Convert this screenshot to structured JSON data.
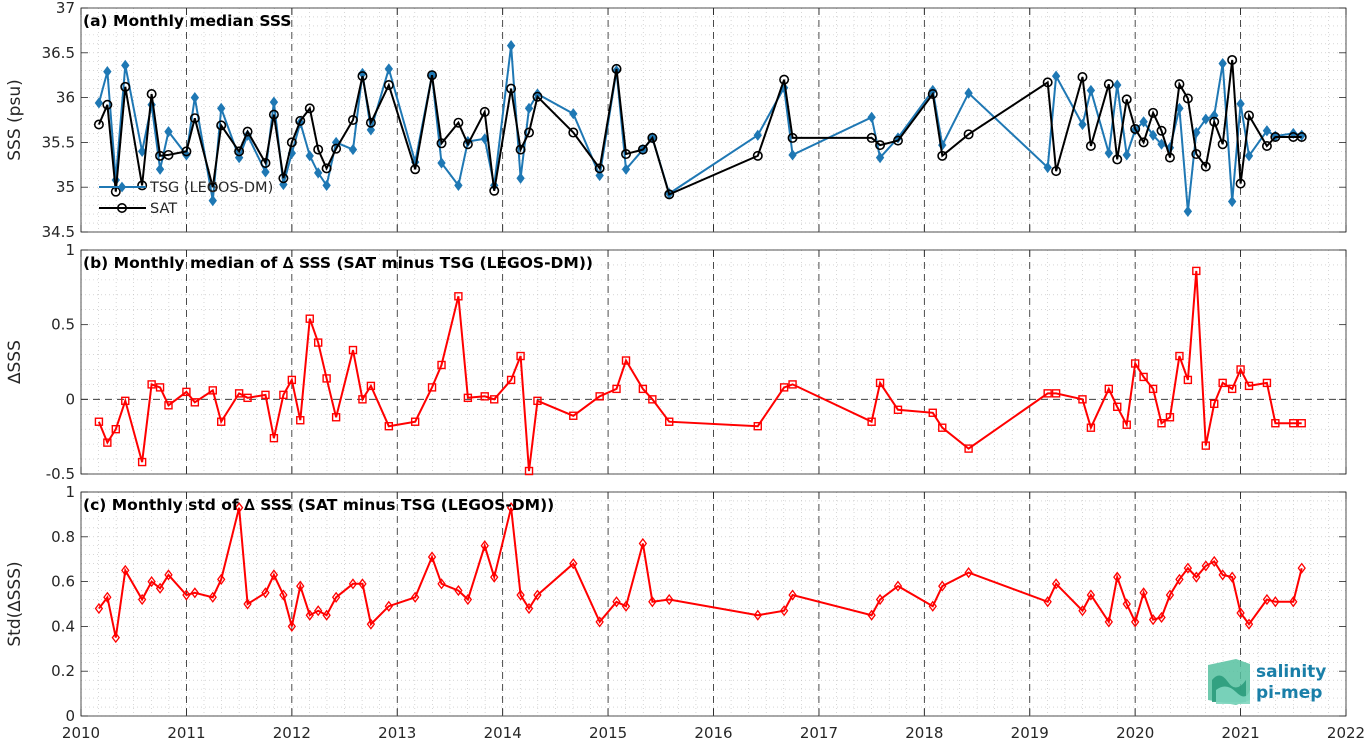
{
  "chart_data": [
    {
      "type": "line",
      "title": "(a) Monthly median SSS",
      "ylabel": "SSS (psu)",
      "xlim": [
        2010,
        2022
      ],
      "ylim": [
        34.5,
        37
      ],
      "yticks": [
        "34.5",
        "35",
        "35.5",
        "36",
        "36.5",
        "37"
      ],
      "grid": "on",
      "legend_location": "lower-left",
      "series": [
        {
          "name": "TSG (LEGOS-DM)",
          "color": "#1f78b4",
          "marker": "diamond",
          "x": [
            2010.17,
            2010.25,
            2010.33,
            2010.42,
            2010.58,
            2010.67,
            2010.75,
            2010.83,
            2011.0,
            2011.08,
            2011.25,
            2011.33,
            2011.5,
            2011.58,
            2011.75,
            2011.83,
            2011.92,
            2012.0,
            2012.08,
            2012.17,
            2012.25,
            2012.33,
            2012.42,
            2012.58,
            2012.67,
            2012.75,
            2012.92,
            2013.17,
            2013.33,
            2013.42,
            2013.58,
            2013.67,
            2013.83,
            2013.92,
            2014.08,
            2014.17,
            2014.25,
            2014.33,
            2014.67,
            2014.92,
            2015.08,
            2015.17,
            2015.33,
            2015.42,
            2015.58,
            2016.42,
            2016.67,
            2016.75,
            2017.5,
            2017.58,
            2017.75,
            2018.08,
            2018.17,
            2018.42,
            2019.17,
            2019.25,
            2019.5,
            2019.58,
            2019.75,
            2019.83,
            2019.92,
            2020.0,
            2020.08,
            2020.17,
            2020.25,
            2020.33,
            2020.42,
            2020.5,
            2020.58,
            2020.67,
            2020.75,
            2020.83,
            2020.92,
            2021.0,
            2021.08,
            2021.25,
            2021.33,
            2021.5,
            2021.58
          ],
          "y": [
            35.94,
            36.29,
            35.08,
            36.36,
            35.4,
            35.92,
            35.2,
            35.62,
            35.36,
            36.0,
            34.85,
            35.88,
            35.33,
            35.58,
            35.17,
            35.95,
            35.03,
            35.38,
            35.72,
            35.35,
            35.16,
            35.02,
            35.5,
            35.42,
            36.27,
            35.64,
            36.32,
            35.28,
            36.25,
            35.27,
            35.02,
            35.51,
            35.54,
            35.02,
            36.58,
            35.1,
            35.88,
            36.04,
            35.82,
            35.13,
            36.3,
            35.2,
            35.42,
            35.55,
            34.93,
            35.58,
            36.11,
            35.36,
            35.78,
            35.33,
            35.55,
            36.08,
            35.47,
            36.05,
            35.22,
            36.24,
            35.7,
            36.08,
            35.38,
            36.14,
            35.36,
            35.64,
            35.73,
            35.58,
            35.48,
            35.44,
            35.88,
            34.73,
            35.61,
            35.76,
            35.8,
            36.38,
            34.84,
            35.93,
            35.35,
            35.63,
            35.57,
            35.6,
            35.58
          ]
        },
        {
          "name": "SAT",
          "color": "#000000",
          "marker": "circle",
          "x": [
            2010.17,
            2010.25,
            2010.33,
            2010.42,
            2010.58,
            2010.67,
            2010.75,
            2010.83,
            2011.0,
            2011.08,
            2011.25,
            2011.33,
            2011.5,
            2011.58,
            2011.75,
            2011.83,
            2011.92,
            2012.0,
            2012.08,
            2012.17,
            2012.25,
            2012.33,
            2012.42,
            2012.58,
            2012.67,
            2012.75,
            2012.92,
            2013.17,
            2013.33,
            2013.42,
            2013.58,
            2013.67,
            2013.83,
            2013.92,
            2014.08,
            2014.17,
            2014.25,
            2014.33,
            2014.67,
            2014.92,
            2015.08,
            2015.17,
            2015.33,
            2015.42,
            2015.58,
            2016.42,
            2016.67,
            2016.75,
            2017.5,
            2017.58,
            2017.75,
            2018.08,
            2018.17,
            2018.42,
            2019.17,
            2019.25,
            2019.5,
            2019.58,
            2019.75,
            2019.83,
            2019.92,
            2020.0,
            2020.08,
            2020.17,
            2020.25,
            2020.33,
            2020.42,
            2020.5,
            2020.58,
            2020.67,
            2020.75,
            2020.83,
            2020.92,
            2021.0,
            2021.08,
            2021.25,
            2021.33,
            2021.5,
            2021.58
          ],
          "y": [
            35.7,
            35.92,
            34.95,
            36.12,
            35.02,
            36.04,
            35.35,
            35.36,
            35.4,
            35.77,
            35.0,
            35.69,
            35.4,
            35.62,
            35.27,
            35.81,
            35.1,
            35.5,
            35.74,
            35.88,
            35.42,
            35.21,
            35.43,
            35.75,
            36.24,
            35.72,
            36.14,
            35.2,
            36.25,
            35.49,
            35.72,
            35.48,
            35.84,
            34.96,
            36.1,
            35.42,
            35.61,
            36.01,
            35.61,
            35.21,
            36.32,
            35.37,
            35.42,
            35.55,
            34.92,
            35.35,
            36.2,
            35.55,
            35.55,
            35.47,
            35.52,
            36.04,
            35.35,
            35.59,
            36.17,
            35.18,
            36.23,
            35.46,
            36.15,
            35.31,
            35.98,
            35.65,
            35.5,
            35.83,
            35.63,
            35.33,
            36.15,
            35.99,
            35.37,
            35.23,
            35.73,
            35.48,
            36.42,
            35.04,
            35.8,
            35.46,
            35.56,
            35.56,
            35.56
          ]
        }
      ],
      "legend": [
        "TSG (LEGOS-DM)",
        "SAT"
      ]
    },
    {
      "type": "line",
      "title": "(b) Monthly median of ∆ SSS (SAT minus TSG (LEGOS-DM))",
      "ylabel": "∆SSS",
      "xlim": [
        2010,
        2022
      ],
      "ylim": [
        -0.5,
        1
      ],
      "yticks": [
        "-0.5",
        "0",
        "0.5",
        "1"
      ],
      "zero_line": true,
      "grid": "on",
      "series": [
        {
          "name": "",
          "color": "#ff0000",
          "marker": "square",
          "x": [
            2010.17,
            2010.25,
            2010.33,
            2010.42,
            2010.58,
            2010.67,
            2010.75,
            2010.83,
            2011.0,
            2011.08,
            2011.25,
            2011.33,
            2011.5,
            2011.58,
            2011.75,
            2011.83,
            2011.92,
            2012.0,
            2012.08,
            2012.17,
            2012.25,
            2012.33,
            2012.42,
            2012.58,
            2012.67,
            2012.75,
            2012.92,
            2013.17,
            2013.33,
            2013.42,
            2013.58,
            2013.67,
            2013.83,
            2013.92,
            2014.08,
            2014.17,
            2014.25,
            2014.33,
            2014.67,
            2014.92,
            2015.08,
            2015.17,
            2015.33,
            2015.42,
            2015.58,
            2016.42,
            2016.67,
            2016.75,
            2017.5,
            2017.58,
            2017.75,
            2018.08,
            2018.17,
            2018.42,
            2019.17,
            2019.25,
            2019.5,
            2019.58,
            2019.75,
            2019.83,
            2019.92,
            2020.0,
            2020.08,
            2020.17,
            2020.25,
            2020.33,
            2020.42,
            2020.5,
            2020.58,
            2020.67,
            2020.75,
            2020.83,
            2020.92,
            2021.0,
            2021.08,
            2021.25,
            2021.33,
            2021.5,
            2021.58
          ],
          "y": [
            -0.15,
            -0.29,
            -0.2,
            -0.01,
            -0.42,
            0.1,
            0.08,
            -0.04,
            0.05,
            -0.02,
            0.06,
            -0.15,
            0.04,
            0.01,
            0.03,
            -0.26,
            0.03,
            0.13,
            -0.14,
            0.54,
            0.38,
            0.14,
            -0.12,
            0.33,
            0.0,
            0.09,
            -0.18,
            -0.15,
            0.08,
            0.23,
            0.69,
            0.01,
            0.02,
            0.0,
            0.13,
            0.29,
            -0.48,
            -0.01,
            -0.11,
            0.02,
            0.07,
            0.26,
            0.07,
            0.0,
            -0.15,
            -0.18,
            0.08,
            0.1,
            -0.15,
            0.11,
            -0.07,
            -0.09,
            -0.19,
            -0.33,
            0.04,
            0.04,
            0.0,
            -0.19,
            0.07,
            -0.05,
            -0.17,
            0.24,
            0.15,
            0.07,
            -0.16,
            -0.12,
            0.29,
            0.13,
            0.86,
            -0.31,
            -0.03,
            0.11,
            0.07,
            0.2,
            0.09,
            0.11,
            -0.16,
            -0.16,
            -0.16
          ]
        }
      ]
    },
    {
      "type": "line",
      "title": "(c) Monthly std of ∆ SSS (SAT minus TSG (LEGOS-DM))",
      "ylabel": "Std(∆SSS)",
      "xlim": [
        2010,
        2022
      ],
      "ylim": [
        0,
        1
      ],
      "yticks": [
        "0",
        "0.2",
        "0.4",
        "0.6",
        "0.8",
        "1"
      ],
      "xticks": [
        "2010",
        "2011",
        "2012",
        "2013",
        "2014",
        "2015",
        "2016",
        "2017",
        "2018",
        "2019",
        "2020",
        "2021",
        "2022"
      ],
      "grid": "on",
      "series": [
        {
          "name": "",
          "color": "#ff0000",
          "marker": "diamond",
          "x": [
            2010.17,
            2010.25,
            2010.33,
            2010.42,
            2010.58,
            2010.67,
            2010.75,
            2010.83,
            2011.0,
            2011.08,
            2011.25,
            2011.33,
            2011.5,
            2011.58,
            2011.75,
            2011.83,
            2011.92,
            2012.0,
            2012.08,
            2012.17,
            2012.25,
            2012.33,
            2012.42,
            2012.58,
            2012.67,
            2012.75,
            2012.92,
            2013.17,
            2013.33,
            2013.42,
            2013.58,
            2013.67,
            2013.83,
            2013.92,
            2014.08,
            2014.17,
            2014.25,
            2014.33,
            2014.67,
            2014.92,
            2015.08,
            2015.17,
            2015.33,
            2015.42,
            2015.58,
            2016.42,
            2016.67,
            2016.75,
            2017.5,
            2017.58,
            2017.75,
            2018.08,
            2018.17,
            2018.42,
            2019.17,
            2019.25,
            2019.5,
            2019.58,
            2019.75,
            2019.83,
            2019.92,
            2020.0,
            2020.08,
            2020.17,
            2020.25,
            2020.33,
            2020.42,
            2020.5,
            2020.58,
            2020.67,
            2020.75,
            2020.83,
            2020.92,
            2021.0,
            2021.08,
            2021.25,
            2021.33,
            2021.5,
            2021.58
          ],
          "y": [
            0.48,
            0.53,
            0.35,
            0.65,
            0.52,
            0.6,
            0.57,
            0.63,
            0.54,
            0.55,
            0.53,
            0.61,
            0.93,
            0.5,
            0.55,
            0.63,
            0.54,
            0.4,
            0.58,
            0.45,
            0.47,
            0.45,
            0.53,
            0.59,
            0.59,
            0.41,
            0.49,
            0.53,
            0.71,
            0.59,
            0.56,
            0.52,
            0.76,
            0.62,
            0.93,
            0.54,
            0.48,
            0.54,
            0.68,
            0.42,
            0.51,
            0.49,
            0.77,
            0.51,
            0.52,
            0.45,
            0.47,
            0.54,
            0.45,
            0.52,
            0.58,
            0.49,
            0.58,
            0.64,
            0.51,
            0.59,
            0.47,
            0.54,
            0.42,
            0.62,
            0.5,
            0.42,
            0.55,
            0.43,
            0.44,
            0.54,
            0.61,
            0.66,
            0.62,
            0.67,
            0.69,
            0.63,
            0.62,
            0.46,
            0.41,
            0.52,
            0.51,
            0.51,
            0.66
          ]
        }
      ]
    }
  ],
  "logo": {
    "line1": "salinity",
    "line2": "pi-mep",
    "color": "#1a7fa8"
  }
}
